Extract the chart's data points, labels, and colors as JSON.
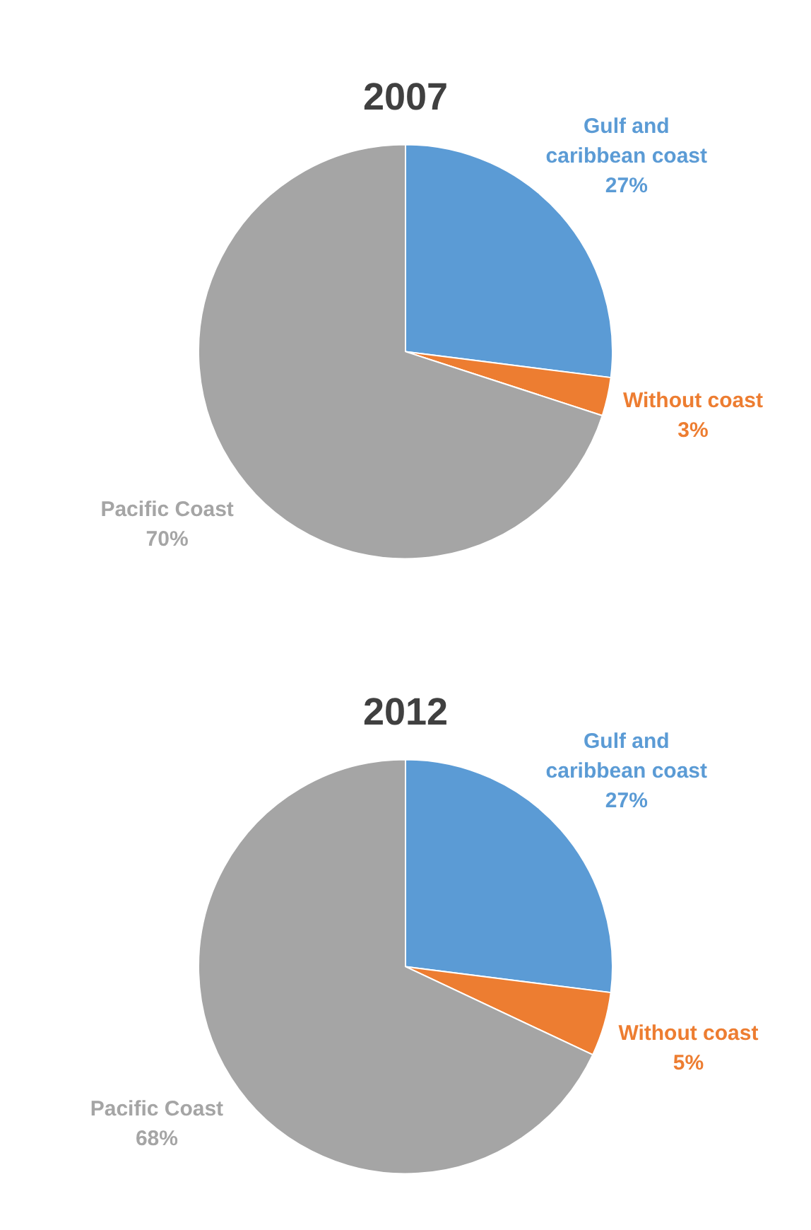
{
  "chart_data": [
    {
      "type": "pie",
      "title": "2007",
      "categories": [
        "Gulf and caribbean coast",
        "Without coast",
        "Pacific Coast"
      ],
      "values": [
        27,
        3,
        70
      ],
      "value_labels": [
        "27%",
        "3%",
        "70%"
      ],
      "colors": [
        "#5b9bd5",
        "#ed7d31",
        "#a5a5a5"
      ],
      "legend": false
    },
    {
      "type": "pie",
      "title": "2012",
      "categories": [
        "Gulf and caribbean coast",
        "Without coast",
        "Pacific Coast"
      ],
      "values": [
        27,
        5,
        68
      ],
      "value_labels": [
        "27%",
        "5%",
        "68%"
      ],
      "colors": [
        "#5b9bd5",
        "#ed7d31",
        "#a5a5a5"
      ],
      "legend": false
    }
  ]
}
